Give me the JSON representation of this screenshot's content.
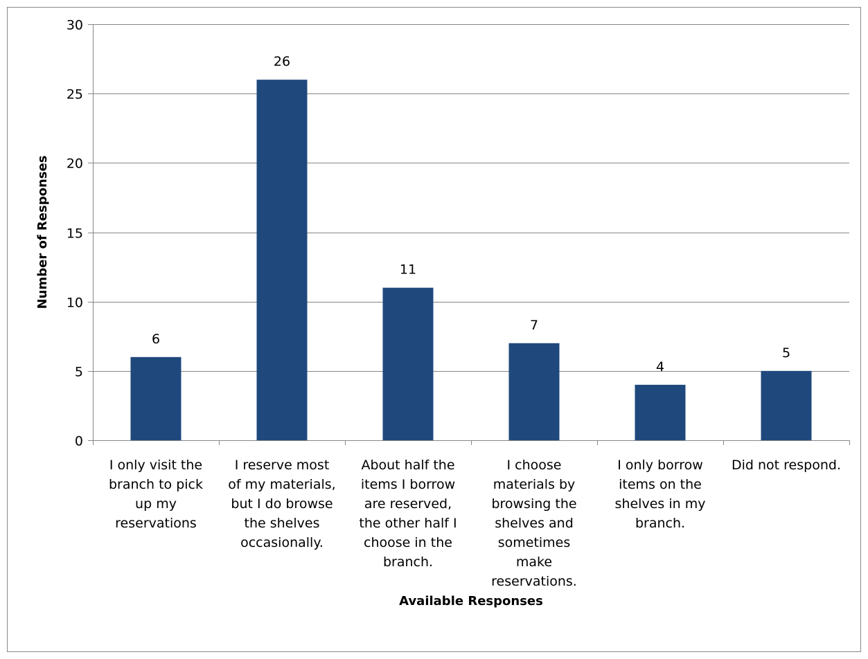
{
  "chart_data": {
    "type": "bar",
    "title": "",
    "xlabel": "Available Responses",
    "ylabel": "Number of Responses",
    "ylim": [
      0,
      30
    ],
    "yticks": [
      0,
      5,
      10,
      15,
      20,
      25,
      30
    ],
    "grid": true,
    "legend": "none",
    "bar_color": "#1F497D",
    "categories": [
      [
        "I only visit the",
        "branch to pick",
        "up my",
        "reservations"
      ],
      [
        "I reserve most",
        "of my materials,",
        "but I do browse",
        "the shelves",
        "occasionally."
      ],
      [
        "About half the",
        "items I borrow",
        "are reserved,",
        "the other half I",
        "choose in the",
        "branch."
      ],
      [
        "I choose",
        "materials by",
        "browsing the",
        "shelves and",
        "sometimes",
        "make",
        "reservations."
      ],
      [
        "I only borrow",
        "items on the",
        "shelves in my",
        "branch."
      ],
      [
        "Did not respond."
      ]
    ],
    "values": [
      6,
      26,
      11,
      7,
      4,
      5
    ]
  }
}
